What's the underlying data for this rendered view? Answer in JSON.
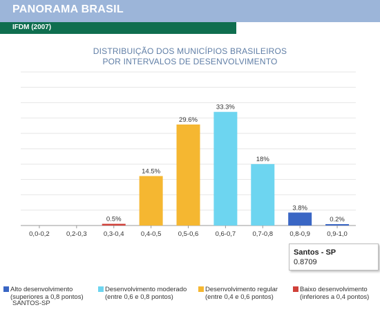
{
  "header": {
    "title": "PANORAMA BRASIL",
    "subtitle": "IFDM (2007)"
  },
  "chart_data": {
    "type": "bar",
    "title_lines": [
      "DISTRIBUIÇÃO DOS MUNICÍPIOS BRASILEIROS",
      "POR INTERVALOS DE DESENVOLVIMENTO"
    ],
    "categories": [
      "0,0-0,2",
      "0,2-0,3",
      "0,3-0,4",
      "0,4-0,5",
      "0,5-0,6",
      "0,6-0,7",
      "0,7-0,8",
      "0,8-0,9",
      "0,9-1,0"
    ],
    "values": [
      0,
      0,
      0.5,
      14.5,
      29.6,
      33.3,
      18,
      3.8,
      0.2
    ],
    "labels": [
      "",
      "",
      "0.5%",
      "14.5%",
      "29.6%",
      "33.3%",
      "18%",
      "3.8%",
      "0.2%"
    ],
    "bar_colors": [
      "#d9534f",
      "#d9534f",
      "#d0413a",
      "#f5b731",
      "#f5b731",
      "#6dd5f0",
      "#6dd5f0",
      "#3a66c4",
      "#3a66c4"
    ],
    "ylim": [
      0,
      45
    ],
    "grid": true,
    "legend_position": "bottom"
  },
  "tooltip": {
    "title": "Santos - SP",
    "value": "0.8709"
  },
  "legend": [
    {
      "color": "#3a66c4",
      "line1": "Alto desenvolvimento",
      "line2": "(superiores a 0,8 pontos)"
    },
    {
      "color": "#6dd5f0",
      "line1": "Desenvolvimento moderado",
      "line2": "(entre 0,6 e 0,8 pontos)"
    },
    {
      "color": "#f5b731",
      "line1": "Desenvolvimento regular",
      "line2": "(entre 0,4 e 0,6 pontos)"
    },
    {
      "color": "#d0413a",
      "line1": "Baixo desenvolvimento",
      "line2": "(inferiores a 0,4 pontos)"
    }
  ],
  "legend_extra": "SANTOS-SP"
}
